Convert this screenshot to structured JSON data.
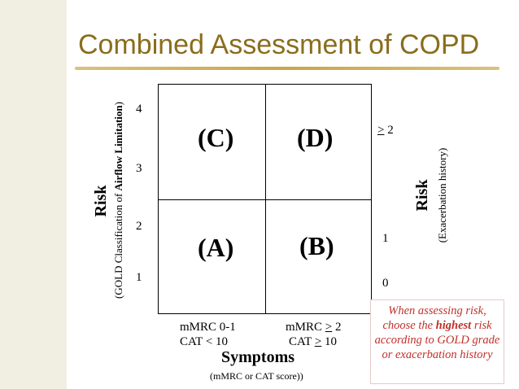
{
  "slide": {
    "title": "Combined Assessment of COPD"
  },
  "quadrants": {
    "c": "(C)",
    "d": "(D)",
    "a": "(A)",
    "b": "(B)"
  },
  "left_axis": {
    "label": "Risk",
    "sublabel_prefix": "(GOLD Classification of ",
    "sublabel_bold": "Airflow Limitation",
    "sublabel_suffix": ")",
    "ticks": [
      "4",
      "3",
      "2",
      "1"
    ]
  },
  "right_axis": {
    "label": "Risk",
    "sublabel": "(Exacerbation history)",
    "tick_top_symbol": ">",
    "tick_top_value": " 2",
    "tick_mid": "1",
    "tick_bottom": "0"
  },
  "symptoms_axis": {
    "left_line1": "mMRC 0-1",
    "left_line2": "CAT < 10",
    "right_line1_prefix": "mMRC ",
    "right_line1_symbol": ">",
    "right_line1_value": " 2",
    "right_line2_prefix": "CAT ",
    "right_line2_symbol": ">",
    "right_line2_value": " 10",
    "title": "Symptoms",
    "subtitle": "(mMRC or CAT score))"
  },
  "note": {
    "part1": "When assessing risk, choose the ",
    "emphasis": "highest",
    "part2": " risk according to GOLD grade or exacerbation history"
  },
  "colors": {
    "title": "#8a6d1c",
    "rule": "#c8a64a",
    "stripe": "#f1efe2",
    "note_text": "#c0302a"
  }
}
